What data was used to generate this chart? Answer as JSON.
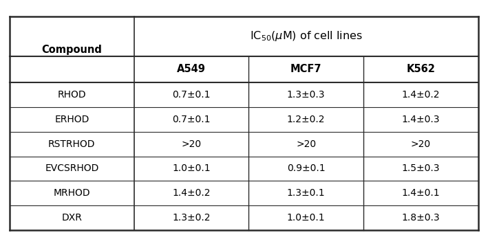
{
  "col_header_1": "Compound",
  "col_headers": [
    "A549",
    "MCF7",
    "K562"
  ],
  "rows": [
    [
      "RHOD",
      "0.7±0.1",
      "1.3±0.3",
      "1.4±0.2"
    ],
    [
      "ERHOD",
      "0.7±0.1",
      "1.2±0.2",
      "1.4±0.3"
    ],
    [
      "RSTRHOD",
      ">20",
      ">20",
      ">20"
    ],
    [
      "EVCSRHOD",
      "1.0±0.1",
      "0.9±0.1",
      "1.5±0.3"
    ],
    [
      "MRHOD",
      "1.4±0.2",
      "1.3±0.1",
      "1.4±0.1"
    ],
    [
      "DXR",
      "1.3±0.2",
      "1.0±0.1",
      "1.8±0.3"
    ]
  ],
  "bg_color": "#ffffff",
  "line_color": "#2b2b2b",
  "header_fontsize": 10.5,
  "cell_fontsize": 10,
  "title_fontsize": 11.5
}
